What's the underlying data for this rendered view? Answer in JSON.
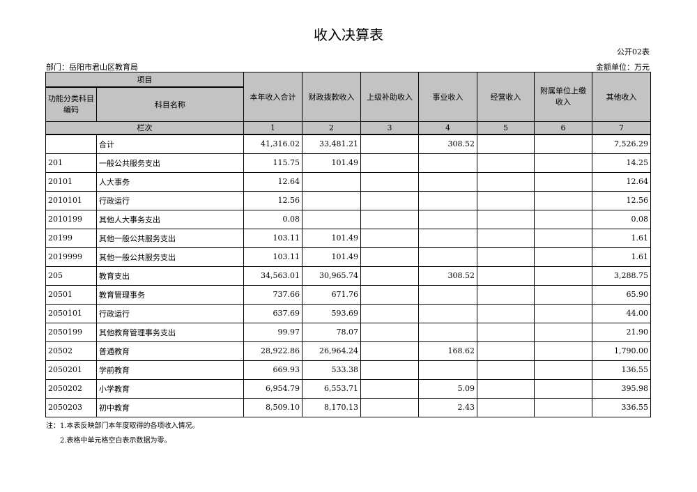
{
  "title": "收入决算表",
  "form_code": "公开02表",
  "department": "部门：岳阳市君山区教育局",
  "unit": "金额单位：万元",
  "header": {
    "item": "项目",
    "code": "功能分类科目编码",
    "name": "科目名称",
    "columns": [
      "本年收入合计",
      "财政拨款收入",
      "上级补助收入",
      "事业收入",
      "经营收入",
      "附属单位上缴收入",
      "其他收入"
    ],
    "col_index_label": "栏次",
    "col_numbers": [
      "1",
      "2",
      "3",
      "4",
      "5",
      "6",
      "7"
    ]
  },
  "rows": [
    {
      "code": "",
      "name": "合计",
      "v": [
        "41,316.02",
        "33,481.21",
        "",
        "308.52",
        "",
        "",
        "7,526.29"
      ]
    },
    {
      "code": "201",
      "name": "一般公共服务支出",
      "v": [
        "115.75",
        "101.49",
        "",
        "",
        "",
        "",
        "14.25"
      ]
    },
    {
      "code": "20101",
      "name": "人大事务",
      "v": [
        "12.64",
        "",
        "",
        "",
        "",
        "",
        "12.64"
      ]
    },
    {
      "code": "2010101",
      "name": "行政运行",
      "v": [
        "12.56",
        "",
        "",
        "",
        "",
        "",
        "12.56"
      ]
    },
    {
      "code": "2010199",
      "name": "其他人大事务支出",
      "v": [
        "0.08",
        "",
        "",
        "",
        "",
        "",
        "0.08"
      ]
    },
    {
      "code": "20199",
      "name": "其他一般公共服务支出",
      "v": [
        "103.11",
        "101.49",
        "",
        "",
        "",
        "",
        "1.61"
      ]
    },
    {
      "code": "2019999",
      "name": "其他一般公共服务支出",
      "v": [
        "103.11",
        "101.49",
        "",
        "",
        "",
        "",
        "1.61"
      ]
    },
    {
      "code": "205",
      "name": "教育支出",
      "v": [
        "34,563.01",
        "30,965.74",
        "",
        "308.52",
        "",
        "",
        "3,288.75"
      ]
    },
    {
      "code": "20501",
      "name": "教育管理事务",
      "v": [
        "737.66",
        "671.76",
        "",
        "",
        "",
        "",
        "65.90"
      ]
    },
    {
      "code": "2050101",
      "name": "行政运行",
      "v": [
        "637.69",
        "593.69",
        "",
        "",
        "",
        "",
        "44.00"
      ]
    },
    {
      "code": "2050199",
      "name": "其他教育管理事务支出",
      "v": [
        "99.97",
        "78.07",
        "",
        "",
        "",
        "",
        "21.90"
      ]
    },
    {
      "code": "20502",
      "name": "普通教育",
      "v": [
        "28,922.86",
        "26,964.24",
        "",
        "168.62",
        "",
        "",
        "1,790.00"
      ]
    },
    {
      "code": "2050201",
      "name": "学前教育",
      "v": [
        "669.93",
        "533.38",
        "",
        "",
        "",
        "",
        "136.55"
      ]
    },
    {
      "code": "2050202",
      "name": "小学教育",
      "v": [
        "6,954.79",
        "6,553.71",
        "",
        "5.09",
        "",
        "",
        "395.98"
      ]
    },
    {
      "code": "2050203",
      "name": "初中教育",
      "v": [
        "8,509.10",
        "8,170.13",
        "",
        "2.43",
        "",
        "",
        "336.55"
      ]
    }
  ],
  "notes": [
    "注：1.本表反映部门本年度取得的各项收入情况。",
    "2.表格中单元格空白表示数据为零。"
  ]
}
